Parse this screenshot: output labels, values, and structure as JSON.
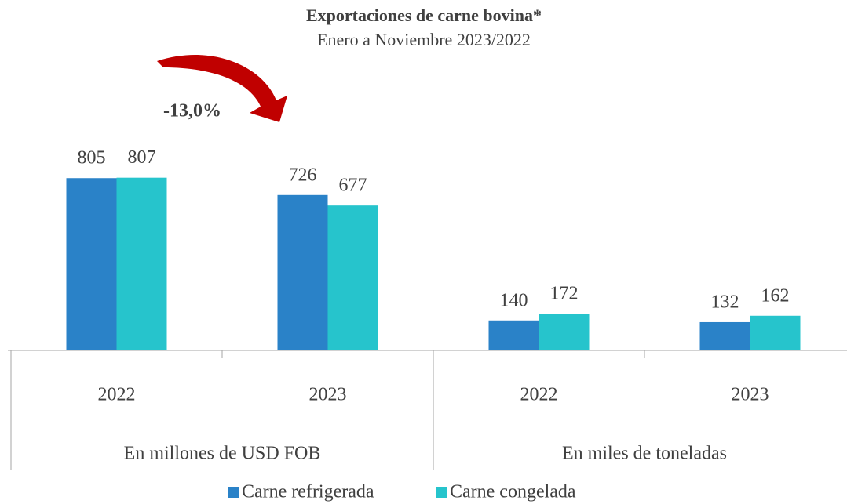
{
  "chart_data": {
    "type": "bar",
    "title": "Exportaciones de carne bovina*",
    "subtitle": "Enero a Noviembre 2023/2022",
    "annotation": "-13,0%",
    "categories": [
      "2022",
      "2023",
      "2022",
      "2023"
    ],
    "groups": [
      "En millones de USD FOB",
      "En miles de toneladas"
    ],
    "series": [
      {
        "name": "Carne refrigerada",
        "color": "#2a82c8",
        "values": [
          805,
          726,
          140,
          132
        ]
      },
      {
        "name": "Carne congelada",
        "color": "#26c4cc",
        "values": [
          807,
          677,
          172,
          162
        ]
      }
    ],
    "ylim": [
      0,
      1000
    ]
  }
}
